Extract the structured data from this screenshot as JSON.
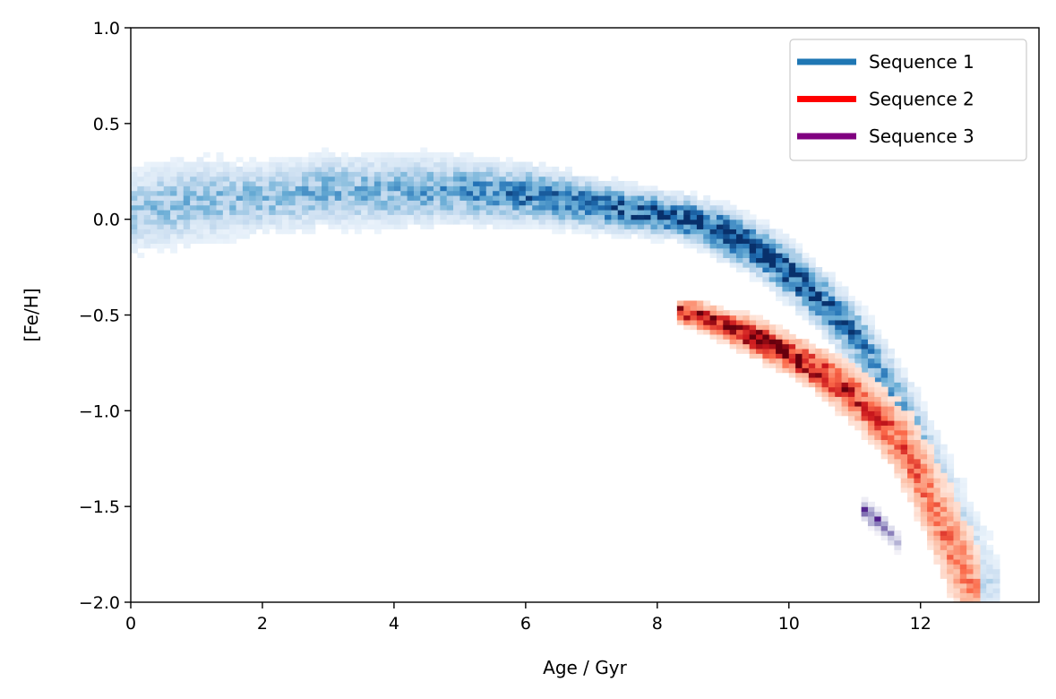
{
  "chart_data": {
    "type": "heatmap",
    "title": "",
    "xlabel": "Age / Gyr",
    "ylabel": "[Fe/H]",
    "xlim": [
      0,
      13.8
    ],
    "ylim": [
      -2.0,
      1.0
    ],
    "xticks": [
      0,
      2,
      4,
      6,
      8,
      10,
      12
    ],
    "xtick_labels": [
      "0",
      "2",
      "4",
      "6",
      "8",
      "10",
      "12"
    ],
    "yticks": [
      1.0,
      0.5,
      0.0,
      -0.5,
      -1.0,
      -1.5,
      -2.0
    ],
    "ytick_labels": [
      "1.0",
      "0.5",
      "0.0",
      "−0.5",
      "−1.0",
      "−1.5",
      "−2.0"
    ],
    "grid": false,
    "legend_position": "top-right",
    "series": [
      {
        "name": "Sequence 1",
        "color": "#1f77b4",
        "colormap": "Blues",
        "ridge": {
          "age": [
            0.0,
            1.0,
            2.0,
            3.0,
            4.0,
            5.0,
            6.0,
            7.0,
            8.0,
            8.5,
            9.0,
            9.5,
            10.0,
            10.5,
            11.0,
            11.5,
            12.0,
            12.3,
            12.6,
            12.9,
            13.2
          ],
          "feh": [
            0.05,
            0.1,
            0.12,
            0.15,
            0.15,
            0.15,
            0.13,
            0.08,
            0.03,
            0.0,
            -0.07,
            -0.15,
            -0.27,
            -0.42,
            -0.6,
            -0.85,
            -1.15,
            -1.38,
            -1.6,
            -1.82,
            -2.0
          ],
          "width": [
            0.12,
            0.12,
            0.1,
            0.1,
            0.1,
            0.09,
            0.08,
            0.07,
            0.06,
            0.06,
            0.07,
            0.07,
            0.08,
            0.08,
            0.09,
            0.1,
            0.12,
            0.13,
            0.14,
            0.15,
            0.15
          ],
          "peak": [
            0.35,
            0.4,
            0.4,
            0.45,
            0.45,
            0.55,
            0.7,
            0.75,
            0.85,
            0.95,
            1.0,
            0.95,
            0.9,
            0.85,
            0.7,
            0.55,
            0.4,
            0.35,
            0.3,
            0.25,
            0.2
          ]
        }
      },
      {
        "name": "Sequence 2",
        "color": "#ff0000",
        "colormap": "Reds",
        "ridge": {
          "age": [
            8.3,
            8.6,
            9.0,
            9.5,
            10.0,
            10.5,
            11.0,
            11.5,
            11.8,
            12.1,
            12.4,
            12.7,
            12.9
          ],
          "feh": [
            -0.48,
            -0.5,
            -0.55,
            -0.62,
            -0.7,
            -0.8,
            -0.92,
            -1.08,
            -1.22,
            -1.42,
            -1.65,
            -1.85,
            -2.0
          ],
          "width": [
            0.03,
            0.04,
            0.04,
            0.05,
            0.05,
            0.06,
            0.07,
            0.09,
            0.11,
            0.13,
            0.14,
            0.14,
            0.14
          ],
          "peak": [
            0.8,
            0.9,
            0.95,
            1.0,
            0.9,
            0.8,
            0.7,
            0.55,
            0.5,
            0.45,
            0.45,
            0.4,
            0.35
          ]
        }
      },
      {
        "name": "Sequence 3",
        "color": "#800080",
        "colormap": "Purples",
        "ridge": {
          "age": [
            11.1,
            11.3,
            11.5,
            11.7
          ],
          "feh": [
            -1.5,
            -1.56,
            -1.63,
            -1.7
          ],
          "width": [
            0.03,
            0.03,
            0.03,
            0.03
          ],
          "peak": [
            0.5,
            0.95,
            0.55,
            0.4
          ]
        }
      }
    ]
  }
}
